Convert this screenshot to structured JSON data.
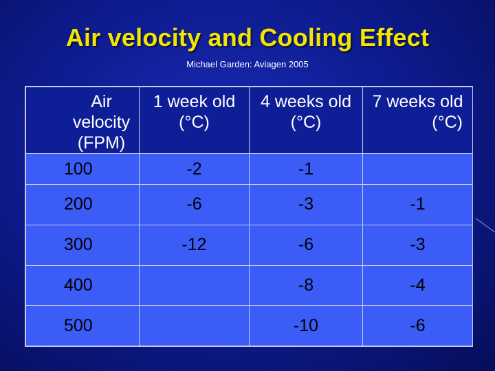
{
  "slide": {
    "title": "Air velocity and Cooling Effect",
    "subtitle": "Michael Garden: Aviagen 2005",
    "colors": {
      "title": "#f2e600",
      "background": "#0d1a8a",
      "header_bg": "#0e1e96",
      "cell_bg": "#3b5cf7"
    }
  },
  "table": {
    "headers": [
      {
        "line1": "Air velocity",
        "line2": "(FPM)"
      },
      {
        "line1": "1 week old",
        "line2": "(°C)"
      },
      {
        "line1": "4 weeks old",
        "line2": "(°C)"
      },
      {
        "line1": "7 weeks old",
        "line2": "(°C)"
      }
    ],
    "rows": [
      [
        "100",
        "-2",
        "-1",
        ""
      ],
      [
        "200",
        "-6",
        "-3",
        "-1"
      ],
      [
        "300",
        "-12",
        "-6",
        "-3"
      ],
      [
        "400",
        "",
        "-8",
        "-4"
      ],
      [
        "500",
        "",
        "-10",
        "-6"
      ]
    ]
  }
}
